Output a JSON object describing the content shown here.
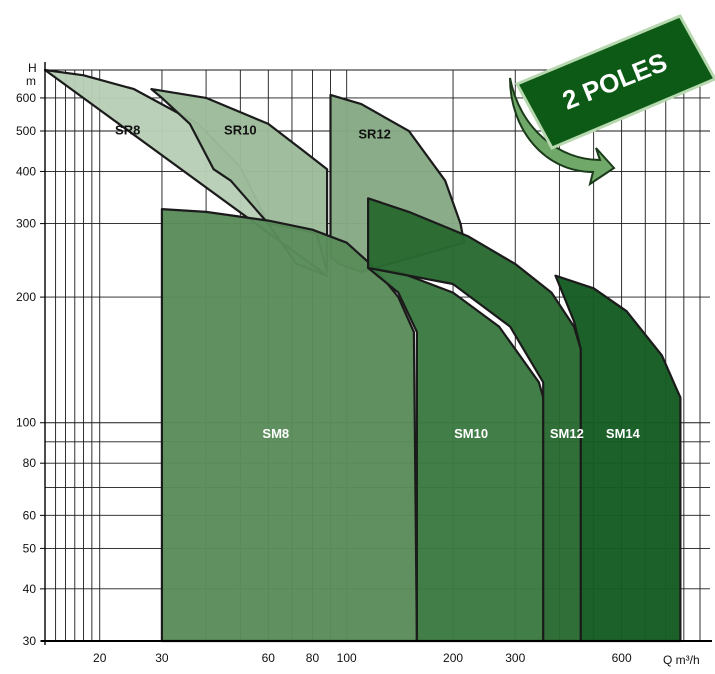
{
  "chart_data": {
    "type": "area",
    "title": "",
    "xlabel": "Q m³/h",
    "ylabel": "H m",
    "x_scale": "log",
    "y_scale": "log",
    "xlim": [
      14,
      1000
    ],
    "ylim": [
      30,
      700
    ],
    "x_ticks": [
      20,
      30,
      60,
      80,
      100,
      200,
      300,
      600
    ],
    "y_ticks": [
      30,
      40,
      50,
      60,
      80,
      100,
      200,
      300,
      400,
      500,
      600
    ],
    "grid": true,
    "badge": "2 POLES",
    "series": [
      {
        "name": "SR8",
        "color": "#b8ceb6",
        "points": [
          [
            14,
            700
          ],
          [
            18,
            680
          ],
          [
            25,
            630
          ],
          [
            38,
            520
          ],
          [
            50,
            410
          ],
          [
            60,
            300
          ],
          [
            72,
            240
          ],
          [
            88,
            225
          ]
        ]
      },
      {
        "name": "SR10",
        "color": "#9dbb9b",
        "points": [
          [
            28,
            630
          ],
          [
            40,
            600
          ],
          [
            60,
            520
          ],
          [
            75,
            450
          ],
          [
            88,
            405
          ],
          [
            88,
            230
          ],
          [
            82,
            285
          ],
          [
            60,
            300
          ],
          [
            47,
            380
          ],
          [
            42,
            405
          ],
          [
            36,
            520
          ],
          [
            30,
            600
          ]
        ]
      },
      {
        "name": "SR12",
        "color": "#86a984",
        "points": [
          [
            90,
            610
          ],
          [
            110,
            580
          ],
          [
            150,
            500
          ],
          [
            190,
            380
          ],
          [
            210,
            300
          ],
          [
            215,
            270
          ],
          [
            110,
            230
          ],
          [
            95,
            240
          ],
          [
            90,
            250
          ]
        ]
      },
      {
        "name": "SM8",
        "color": "#5b8c5b",
        "points": [
          [
            30,
            325
          ],
          [
            40,
            320
          ],
          [
            60,
            305
          ],
          [
            80,
            290
          ],
          [
            100,
            270
          ],
          [
            120,
            235
          ],
          [
            140,
            200
          ],
          [
            155,
            165
          ],
          [
            158,
            30
          ],
          [
            30,
            30
          ]
        ]
      },
      {
        "name": "SM10",
        "color": "#3c7a42",
        "points": [
          [
            115,
            235
          ],
          [
            140,
            230
          ],
          [
            200,
            205
          ],
          [
            270,
            170
          ],
          [
            350,
            125
          ],
          [
            360,
            115
          ],
          [
            360,
            30
          ],
          [
            158,
            30
          ],
          [
            158,
            165
          ],
          [
            140,
            205
          ]
        ]
      },
      {
        "name": "SM12",
        "color": "#2a6a32",
        "points": [
          [
            115,
            345
          ],
          [
            150,
            320
          ],
          [
            220,
            280
          ],
          [
            300,
            240
          ],
          [
            380,
            205
          ],
          [
            440,
            170
          ],
          [
            460,
            150
          ],
          [
            460,
            30
          ],
          [
            360,
            30
          ],
          [
            360,
            125
          ],
          [
            290,
            170
          ],
          [
            200,
            215
          ],
          [
            115,
            235
          ]
        ]
      },
      {
        "name": "SM14",
        "color": "#145c22",
        "points": [
          [
            390,
            225
          ],
          [
            500,
            210
          ],
          [
            620,
            185
          ],
          [
            780,
            145
          ],
          [
            860,
            120
          ],
          [
            880,
            115
          ],
          [
            880,
            30
          ],
          [
            460,
            30
          ],
          [
            460,
            150
          ],
          [
            440,
            175
          ]
        ]
      }
    ],
    "labels": [
      {
        "text": "SR8",
        "x": 24,
        "y": 490
      },
      {
        "text": "SR10",
        "x": 50,
        "y": 490
      },
      {
        "text": "SR12",
        "x": 120,
        "y": 480
      },
      {
        "text": "SM8",
        "x": 63,
        "y": 92
      },
      {
        "text": "SM10",
        "x": 225,
        "y": 92
      },
      {
        "text": "SM12",
        "x": 420,
        "y": 92
      },
      {
        "text": "SM14",
        "x": 605,
        "y": 92
      }
    ]
  }
}
